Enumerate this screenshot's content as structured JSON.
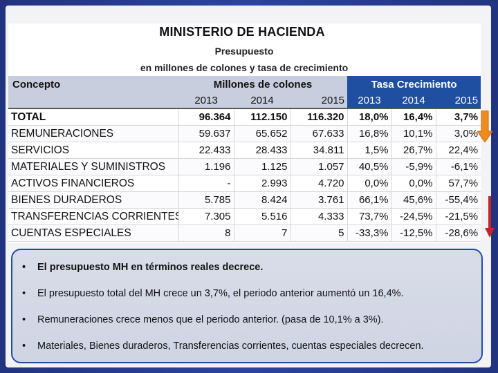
{
  "header": {
    "title": "MINISTERIO DE HACIENDA",
    "subtitle_line1": "Presupuesto",
    "subtitle_line2": "en millones de colones y tasa de crecimiento"
  },
  "table": {
    "concept_header": "Concepto",
    "millones_header": "Millones de colones",
    "tasa_header": "Tasa Crecimiento",
    "years": [
      "2013",
      "2014",
      "2015"
    ],
    "tasa_years": [
      "2013",
      "2014",
      "2015"
    ],
    "rows": [
      {
        "concepto": "TOTAL",
        "m2013": "96.364",
        "m2014": "112.150",
        "m2015": "116.320",
        "t2013": "18,0%",
        "t2014": "16,4%",
        "t2015": "3,7%"
      },
      {
        "concepto": "REMUNERACIONES",
        "m2013": "59.637",
        "m2014": "65.652",
        "m2015": "67.633",
        "t2013": "16,8%",
        "t2014": "10,1%",
        "t2015": "3,0%"
      },
      {
        "concepto": "SERVICIOS",
        "m2013": "22.433",
        "m2014": "28.433",
        "m2015": "34.811",
        "t2013": "1,5%",
        "t2014": "26,7%",
        "t2015": "22,4%"
      },
      {
        "concepto": "MATERIALES Y SUMINISTROS",
        "m2013": "1.196",
        "m2014": "1.125",
        "m2015": "1.057",
        "t2013": "40,5%",
        "t2014": "-5,9%",
        "t2015": "-6,1%"
      },
      {
        "concepto": "ACTIVOS FINANCIEROS",
        "m2013": "-",
        "m2014": "2.993",
        "m2015": "4.720",
        "t2013": "0,0%",
        "t2014": "0,0%",
        "t2015": "57,7%"
      },
      {
        "concepto": "BIENES DURADEROS",
        "m2013": "5.785",
        "m2014": "8.424",
        "m2015": "3.761",
        "t2013": "66,1%",
        "t2014": "45,6%",
        "t2015": "-55,4%"
      },
      {
        "concepto": "TRANSFERENCIAS CORRIENTES",
        "m2013": "7.305",
        "m2014": "5.516",
        "m2015": "4.333",
        "t2013": "73,7%",
        "t2014": "-24,5%",
        "t2015": "-21,5%"
      },
      {
        "concepto": "CUENTAS ESPECIALES",
        "m2013": "8",
        "m2014": "7",
        "m2015": "5",
        "t2013": "-33,3%",
        "t2014": "-12,5%",
        "t2015": "-28,6%"
      }
    ]
  },
  "bullets": {
    "marker": "•",
    "items": [
      "El presupuesto MH en términos reales decrece.",
      "El presupuesto total del MH crece un 3,7%, el periodo anterior aumentó un 16,4%.",
      "Remuneraciones  crece menos que el periodo anterior. (pasa de 10,1% a 3%).",
      "Materiales, Bienes duraderos, Transferencias corrientes, cuentas especiales decrecen."
    ]
  },
  "colors": {
    "tasa_header_bg": "#1e4fa0",
    "arrow_orange": "#f08a1c",
    "arrow_red": "#c0282d",
    "box_border": "#1f4ea3"
  },
  "icons": {
    "orange_arrow": "arrow-down-icon",
    "red_arrow": "arrow-down-icon"
  }
}
